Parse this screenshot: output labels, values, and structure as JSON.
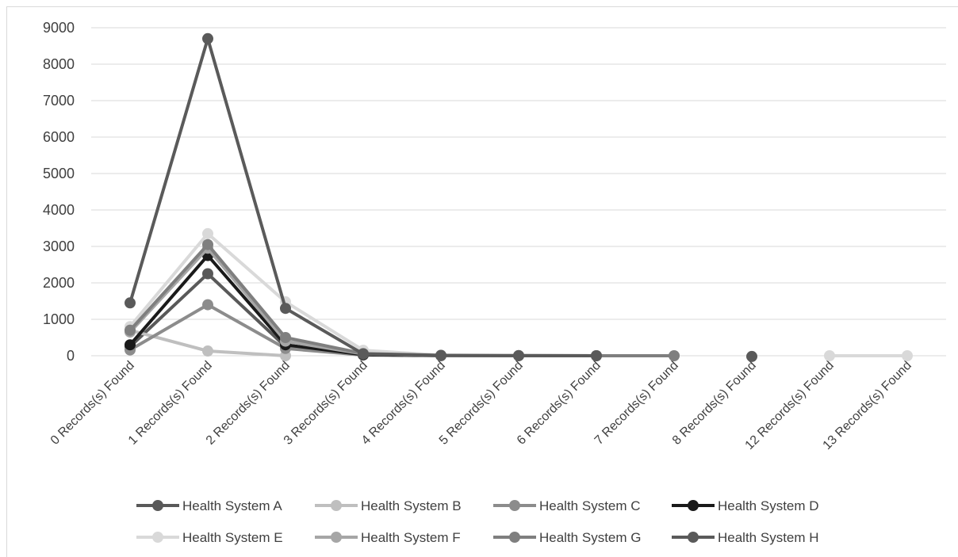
{
  "chart_data": {
    "type": "line",
    "title": "",
    "xlabel": "",
    "ylabel": "",
    "categories": [
      "0 Records(s) Found",
      "1 Records(s) Found",
      "2 Records(s) Found",
      "3 Records(s) Found",
      "4 Records(s) Found",
      "5 Records(s) Found",
      "6 Records(s) Found",
      "7 Records(s) Found",
      "8 Records(s) Found",
      "12 Records(s) Found",
      "13 Records(s) Found"
    ],
    "ylim": [
      0,
      9000
    ],
    "yticks": [
      0,
      1000,
      2000,
      3000,
      4000,
      5000,
      6000,
      7000,
      8000,
      9000
    ],
    "grid": true,
    "legend_position": "bottom",
    "series": [
      {
        "name": "Health System A",
        "color": "#595959",
        "values": [
          250,
          2250,
          250,
          20,
          null,
          null,
          null,
          null,
          null,
          null,
          null
        ]
      },
      {
        "name": "Health System B",
        "color": "#bfbfbf",
        "values": [
          700,
          130,
          0,
          null,
          null,
          null,
          null,
          null,
          null,
          null,
          null
        ]
      },
      {
        "name": "Health System C",
        "color": "#8c8c8c",
        "values": [
          160,
          1400,
          200,
          20,
          0,
          null,
          null,
          null,
          null,
          null,
          null
        ]
      },
      {
        "name": "Health System D",
        "color": "#1a1a1a",
        "values": [
          300,
          2750,
          300,
          30,
          5,
          3,
          0,
          null,
          null,
          null,
          null
        ]
      },
      {
        "name": "Health System E",
        "color": "#d9d9d9",
        "values": [
          800,
          3350,
          1480,
          150,
          15,
          5,
          2,
          1,
          null,
          0,
          0
        ]
      },
      {
        "name": "Health System F",
        "color": "#a6a6a6",
        "values": [
          650,
          2950,
          400,
          50,
          5,
          0,
          null,
          null,
          null,
          null,
          null
        ]
      },
      {
        "name": "Health System G",
        "color": "#7f7f7f",
        "values": [
          700,
          3050,
          500,
          60,
          10,
          2,
          1,
          0,
          null,
          null,
          null
        ]
      },
      {
        "name": "Health System H",
        "color": "#5a5a5a",
        "values": [
          1450,
          8700,
          1300,
          50,
          8,
          3,
          0,
          null,
          -20,
          null,
          null
        ]
      }
    ]
  }
}
